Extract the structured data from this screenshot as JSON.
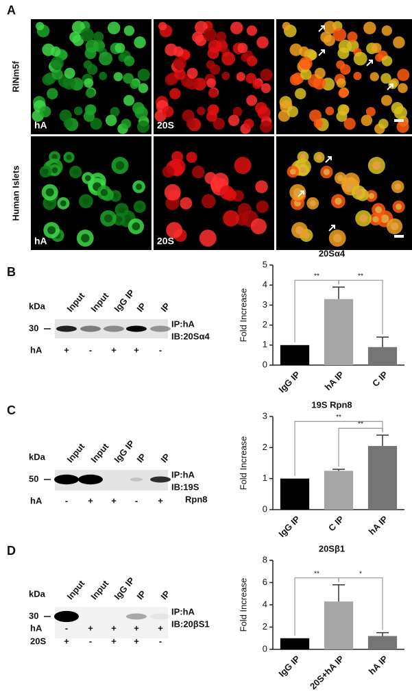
{
  "figure": {
    "panel_a": {
      "letter": "A",
      "rows": [
        "RINm5f",
        "Human Islets"
      ],
      "channels": [
        "hA",
        "20S"
      ]
    },
    "blots": [
      {
        "letter": "B",
        "kda_label": "kDa",
        "marker": "30",
        "lanes": [
          "Input",
          "Input",
          "IgG IP",
          "IP",
          "IP"
        ],
        "ip_label": "IP:hA",
        "ib_label": [
          "IB:20Sα4"
        ],
        "rows": [
          {
            "label": "hA",
            "signs": [
              "+",
              "-",
              "+",
              "+",
              "-"
            ]
          }
        ]
      },
      {
        "letter": "C",
        "kda_label": "kDa",
        "marker": "50",
        "lanes": [
          "Input",
          "Input",
          "IgG IP",
          "IP",
          "IP"
        ],
        "ip_label": "IP:hA",
        "ib_label": [
          "IB:19S",
          "Rpn8"
        ],
        "rows": [
          {
            "label": "hA",
            "signs": [
              "-",
              "+",
              "+",
              "-",
              "+"
            ]
          }
        ]
      },
      {
        "letter": "D",
        "kda_label": "kDa",
        "marker": "30",
        "lanes": [
          "Input",
          "Input",
          "IgG IP",
          "IP",
          "IP"
        ],
        "ip_label": "IP:hA",
        "ib_label": [
          "IB:20βS1"
        ],
        "rows": [
          {
            "label": "hA",
            "signs": [
              "-",
              "+",
              "+",
              "+",
              "+"
            ]
          },
          {
            "label": "20S",
            "signs": [
              "+",
              "-",
              "+",
              "+",
              "-"
            ]
          }
        ]
      }
    ]
  },
  "chart_data": [
    {
      "type": "bar",
      "title": "20Sα4",
      "y_label": "Fold Increase",
      "categories": [
        "IgG IP",
        "hA IP",
        "C IP"
      ],
      "values": [
        1,
        3.3,
        0.9
      ],
      "errors": [
        null,
        0.6,
        0.5
      ],
      "colors": [
        "#000000",
        "#a6a6a6",
        "#757575"
      ],
      "ylim": [
        0,
        5
      ],
      "yticks": [
        0,
        1,
        2,
        3,
        4,
        5
      ],
      "annotations": [
        "**",
        "**"
      ]
    },
    {
      "type": "bar",
      "title": "19S Rpn8",
      "y_label": "Fold Increase",
      "categories": [
        "IgG IP",
        "C IP",
        "hA IP"
      ],
      "values": [
        1,
        1.25,
        2.05
      ],
      "errors": [
        null,
        0.05,
        0.35
      ],
      "colors": [
        "#000000",
        "#a6a6a6",
        "#757575"
      ],
      "ylim": [
        0,
        3
      ],
      "yticks": [
        0,
        1,
        2,
        3
      ],
      "annotations": [
        "**",
        "**"
      ]
    },
    {
      "type": "bar",
      "title": "20Sβ1",
      "y_label": "Fold Increase",
      "categories": [
        "IgG IP",
        "20S+hA IP",
        "hA IP"
      ],
      "values": [
        1,
        4.3,
        1.2
      ],
      "errors": [
        null,
        1.5,
        0.3
      ],
      "colors": [
        "#000000",
        "#a6a6a6",
        "#757575"
      ],
      "ylim": [
        0,
        8
      ],
      "yticks": [
        0,
        2,
        4,
        6,
        8
      ],
      "annotations": [
        "**",
        "*"
      ]
    }
  ]
}
